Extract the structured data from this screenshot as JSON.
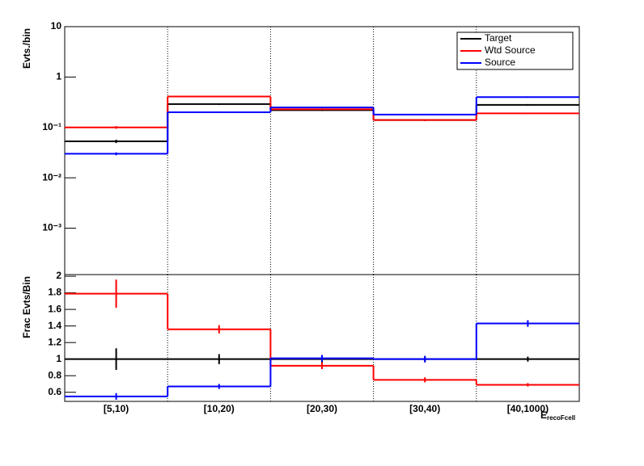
{
  "chart_data": [
    {
      "type": "step",
      "y_label": "Evts./bin",
      "log_y": true,
      "categories": [
        "[5,10)",
        "[10,20)",
        "[20,30)",
        "[30,40)",
        "[40,1000)"
      ],
      "ylim": [
        0.00012,
        10
      ],
      "yticks": [
        {
          "value": 10,
          "label": "10"
        },
        {
          "value": 1,
          "label": "1"
        },
        {
          "value": 0.1,
          "label": "10⁻¹"
        },
        {
          "value": 0.01,
          "label": "10⁻²"
        },
        {
          "value": 0.001,
          "label": "10⁻³"
        }
      ],
      "legend": "top-right",
      "grid_x": true,
      "series": [
        {
          "name": "Target",
          "color": "#000000",
          "values": [
            0.053,
            0.29,
            0.22,
            0.14,
            0.28
          ],
          "errors": [
            0.004,
            0.01,
            0.008,
            0.006,
            0.01
          ]
        },
        {
          "name": "Wtd Source",
          "color": "#ff0000",
          "values": [
            0.1,
            0.41,
            0.23,
            0.14,
            0.19
          ],
          "errors": [
            0.006,
            0.012,
            0.008,
            0.006,
            0.006
          ]
        },
        {
          "name": "Source",
          "color": "#0000ff",
          "values": [
            0.03,
            0.2,
            0.25,
            0.18,
            0.4
          ],
          "errors": [
            0.002,
            0.006,
            0.008,
            0.006,
            0.012
          ]
        }
      ]
    },
    {
      "type": "step",
      "y_label": "Frac Evts/Bin",
      "x_label": "E",
      "x_label_sub": "recoFcell",
      "categories": [
        "[5,10)",
        "[10,20)",
        "[20,30)",
        "[30,40)",
        "[40,1000)"
      ],
      "ylim": [
        0.49,
        2.02
      ],
      "yticks": [
        0.6,
        0.8,
        1,
        1.2,
        1.4,
        1.6,
        1.8,
        2
      ],
      "grid_x": true,
      "series": [
        {
          "name": "Target",
          "color": "#000000",
          "values": [
            1,
            1,
            1,
            1,
            1
          ],
          "errors": [
            0.13,
            0.06,
            0.04,
            0.03,
            0.03
          ]
        },
        {
          "name": "Wtd Source",
          "color": "#ff0000",
          "values": [
            1.79,
            1.36,
            0.92,
            0.75,
            0.69
          ],
          "errors": [
            0.17,
            0.05,
            0.04,
            0.03,
            0.02
          ]
        },
        {
          "name": "Source",
          "color": "#0000ff",
          "values": [
            0.55,
            0.67,
            1.01,
            1.0,
            1.43
          ],
          "errors": [
            0.04,
            0.03,
            0.04,
            0.04,
            0.04
          ]
        }
      ]
    }
  ]
}
